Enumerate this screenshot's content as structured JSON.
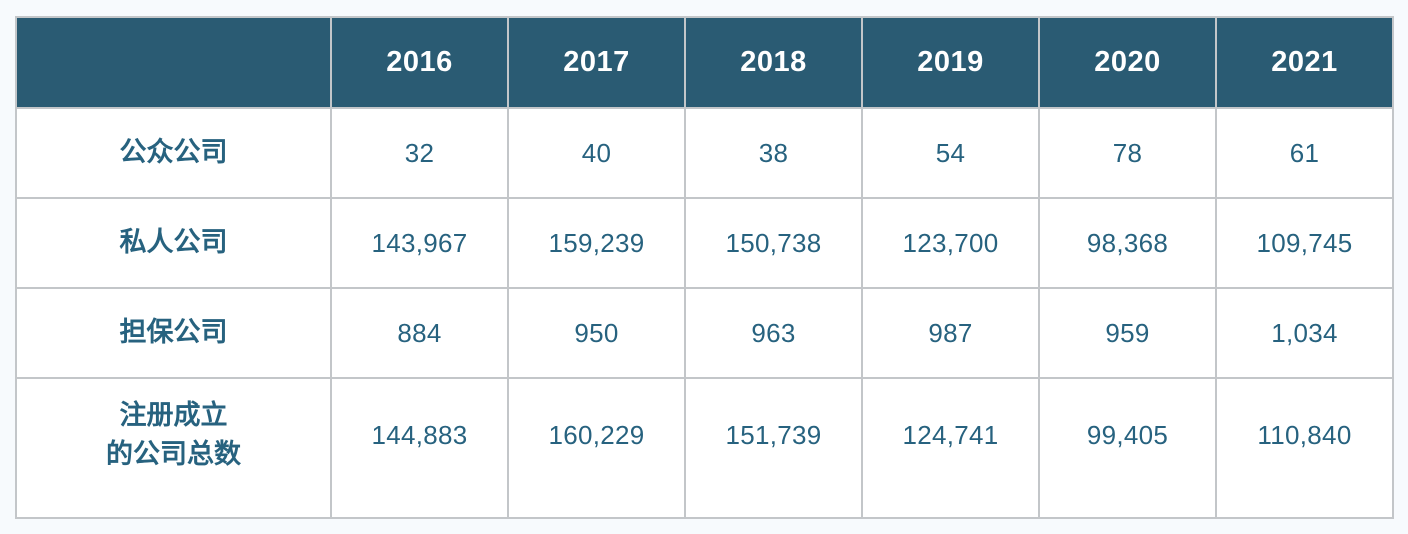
{
  "colors": {
    "page-bg": "#f7fafd",
    "header-bg": "#2a5b73",
    "header-text": "#ffffff",
    "body-text": "#27627f",
    "border": "#c3c6c9"
  },
  "table": {
    "columns": [
      "",
      "2016",
      "2017",
      "2018",
      "2019",
      "2020",
      "2021"
    ],
    "rows": [
      {
        "label": "公众公司",
        "values": [
          "32",
          "40",
          "38",
          "54",
          "78",
          "61"
        ]
      },
      {
        "label": "私人公司",
        "values": [
          "143,967",
          "159,239",
          "150,738",
          "123,700",
          "98,368",
          "109,745"
        ]
      },
      {
        "label": "担保公司",
        "values": [
          "884",
          "950",
          "963",
          "987",
          "959",
          "1,034"
        ]
      },
      {
        "label": "注册成立\n的公司总数",
        "values": [
          "144,883",
          "160,229",
          "151,739",
          "124,741",
          "99,405",
          "110,840"
        ]
      }
    ]
  },
  "chart_data": {
    "type": "table",
    "title": "",
    "categories": [
      "2016",
      "2017",
      "2018",
      "2019",
      "2020",
      "2021"
    ],
    "series": [
      {
        "name": "公众公司",
        "values": [
          32,
          40,
          38,
          54,
          78,
          61
        ]
      },
      {
        "name": "私人公司",
        "values": [
          143967,
          159239,
          150738,
          123700,
          98368,
          109745
        ]
      },
      {
        "name": "担保公司",
        "values": [
          884,
          950,
          963,
          987,
          959,
          1034
        ]
      },
      {
        "name": "注册成立的公司总数",
        "values": [
          144883,
          160229,
          151739,
          124741,
          99405,
          110840
        ]
      }
    ]
  }
}
